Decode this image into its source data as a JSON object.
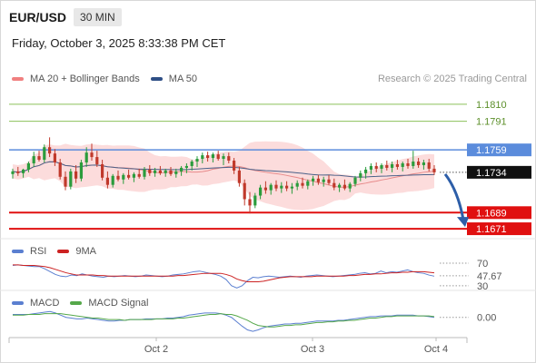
{
  "header": {
    "symbol": "EUR/USD",
    "timeframe": "30 MIN",
    "datetime": "Friday, October 3, 2025 8:33:38 PM CET"
  },
  "legend": {
    "items": [
      {
        "label": "MA 20 + Bollinger Bands",
        "color": "#f08080"
      },
      {
        "label": "MA 50",
        "color": "#2f4f86"
      }
    ],
    "research": "Research © 2025 Trading Central"
  },
  "colors": {
    "up_candle": "#2a9c3c",
    "down_candle": "#c0392b",
    "resistance": "#8cc05a",
    "pivot": "#5b8cdc",
    "support": "#e01010",
    "current": "#222222",
    "bollinger_fill": "#fbd3d3",
    "ma50": "#4a6189",
    "arrow": "#2d5ea8",
    "rsi": "#5b7fd0",
    "rsi_ma": "#cc2222",
    "macd": "#5b7fd0",
    "macd_signal": "#55a84a"
  },
  "chart_data": [
    {
      "type": "candlestick",
      "name": "price",
      "x_ticks": [
        "Oct 2",
        "Oct 3",
        "Oct 4"
      ],
      "levels": [
        {
          "value": 1.181,
          "label": "1.1810",
          "kind": "resistance"
        },
        {
          "value": 1.1791,
          "label": "1.1791",
          "kind": "resistance"
        },
        {
          "value": 1.1759,
          "label": "1.1759",
          "kind": "pivot"
        },
        {
          "value": 1.1734,
          "label": "1.1734",
          "kind": "current"
        },
        {
          "value": 1.1689,
          "label": "1.1689",
          "kind": "support"
        },
        {
          "value": 1.1671,
          "label": "1.1671",
          "kind": "support"
        }
      ],
      "ylim": [
        1.1665,
        1.1825
      ],
      "forecast_target": 1.1671,
      "ohlc": [
        [
          1.1732,
          1.1738,
          1.1727,
          1.1735
        ],
        [
          1.1735,
          1.174,
          1.173,
          1.1733
        ],
        [
          1.1733,
          1.1738,
          1.1728,
          1.1737
        ],
        [
          1.1737,
          1.1746,
          1.1734,
          1.1744
        ],
        [
          1.1744,
          1.1757,
          1.174,
          1.1752
        ],
        [
          1.1752,
          1.1758,
          1.1746,
          1.1748
        ],
        [
          1.1748,
          1.1765,
          1.1745,
          1.1762
        ],
        [
          1.1762,
          1.1773,
          1.1751,
          1.1755
        ],
        [
          1.1755,
          1.176,
          1.1741,
          1.1745
        ],
        [
          1.1745,
          1.1749,
          1.1726,
          1.1729
        ],
        [
          1.1729,
          1.1735,
          1.1714,
          1.1718
        ],
        [
          1.1718,
          1.1738,
          1.1715,
          1.1735
        ],
        [
          1.1735,
          1.1742,
          1.1722,
          1.1727
        ],
        [
          1.1727,
          1.1748,
          1.1724,
          1.1745
        ],
        [
          1.1745,
          1.1762,
          1.174,
          1.1756
        ],
        [
          1.1756,
          1.1766,
          1.1747,
          1.1751
        ],
        [
          1.1751,
          1.1758,
          1.174,
          1.1743
        ],
        [
          1.1743,
          1.1748,
          1.1725,
          1.1728
        ],
        [
          1.1728,
          1.1735,
          1.1716,
          1.172
        ],
        [
          1.172,
          1.1732,
          1.1717,
          1.173
        ],
        [
          1.173,
          1.1736,
          1.1724,
          1.1726
        ],
        [
          1.1726,
          1.1733,
          1.1721,
          1.1731
        ],
        [
          1.1731,
          1.1737,
          1.1726,
          1.1728
        ],
        [
          1.1728,
          1.1734,
          1.1723,
          1.1732
        ],
        [
          1.1732,
          1.1738,
          1.1727,
          1.1729
        ],
        [
          1.1729,
          1.174,
          1.1726,
          1.1737
        ],
        [
          1.1737,
          1.1742,
          1.173,
          1.1733
        ],
        [
          1.1733,
          1.1739,
          1.1729,
          1.1736
        ],
        [
          1.1736,
          1.1741,
          1.1731,
          1.1733
        ],
        [
          1.1733,
          1.1738,
          1.1729,
          1.1736
        ],
        [
          1.1736,
          1.174,
          1.173,
          1.1732
        ],
        [
          1.1732,
          1.1738,
          1.1728,
          1.1735
        ],
        [
          1.1735,
          1.1741,
          1.173,
          1.1739
        ],
        [
          1.1739,
          1.1744,
          1.1733,
          1.1741
        ],
        [
          1.1741,
          1.1748,
          1.1736,
          1.1746
        ],
        [
          1.1746,
          1.1752,
          1.174,
          1.1749
        ],
        [
          1.1749,
          1.1756,
          1.1744,
          1.1753
        ],
        [
          1.1753,
          1.1757,
          1.1746,
          1.175
        ],
        [
          1.175,
          1.1756,
          1.1745,
          1.1754
        ],
        [
          1.1754,
          1.1758,
          1.1747,
          1.1749
        ],
        [
          1.1749,
          1.1755,
          1.1742,
          1.1752
        ],
        [
          1.1752,
          1.1756,
          1.1744,
          1.1747
        ],
        [
          1.1747,
          1.175,
          1.1732,
          1.1736
        ],
        [
          1.1736,
          1.174,
          1.1718,
          1.1722
        ],
        [
          1.1722,
          1.1726,
          1.1697,
          1.1704
        ],
        [
          1.1704,
          1.1712,
          1.1688,
          1.1697
        ],
        [
          1.1697,
          1.1711,
          1.1694,
          1.1708
        ],
        [
          1.1708,
          1.172,
          1.1704,
          1.1717
        ],
        [
          1.1717,
          1.1724,
          1.171,
          1.1714
        ],
        [
          1.1714,
          1.1722,
          1.1709,
          1.172
        ],
        [
          1.172,
          1.1725,
          1.1713,
          1.1716
        ],
        [
          1.1716,
          1.1723,
          1.1711,
          1.1719
        ],
        [
          1.1719,
          1.1724,
          1.1713,
          1.1716
        ],
        [
          1.1716,
          1.1722,
          1.171,
          1.1718
        ],
        [
          1.1718,
          1.1725,
          1.1714,
          1.1722
        ],
        [
          1.1722,
          1.1728,
          1.1716,
          1.1719
        ],
        [
          1.1719,
          1.1726,
          1.1715,
          1.1724
        ],
        [
          1.1724,
          1.173,
          1.1719,
          1.1727
        ],
        [
          1.1727,
          1.1731,
          1.172,
          1.1723
        ],
        [
          1.1723,
          1.1729,
          1.1718,
          1.1726
        ],
        [
          1.1726,
          1.1731,
          1.172,
          1.1722
        ],
        [
          1.1722,
          1.1727,
          1.1714,
          1.1717
        ],
        [
          1.1717,
          1.1722,
          1.1712,
          1.172
        ],
        [
          1.172,
          1.1726,
          1.1714,
          1.1716
        ],
        [
          1.1716,
          1.1723,
          1.1712,
          1.1721
        ],
        [
          1.1721,
          1.173,
          1.1718,
          1.1728
        ],
        [
          1.1728,
          1.1736,
          1.1724,
          1.1733
        ],
        [
          1.1733,
          1.174,
          1.1727,
          1.1737
        ],
        [
          1.1737,
          1.1744,
          1.1732,
          1.1741
        ],
        [
          1.1741,
          1.1745,
          1.1734,
          1.1738
        ],
        [
          1.1738,
          1.1744,
          1.1733,
          1.1742
        ],
        [
          1.1742,
          1.1747,
          1.1736,
          1.1739
        ],
        [
          1.1739,
          1.1746,
          1.1734,
          1.1743
        ],
        [
          1.1743,
          1.1748,
          1.1737,
          1.174
        ],
        [
          1.174,
          1.1746,
          1.1735,
          1.1744
        ],
        [
          1.1744,
          1.1749,
          1.1738,
          1.1741
        ],
        [
          1.1741,
          1.1758,
          1.1738,
          1.1746
        ],
        [
          1.1746,
          1.175,
          1.1739,
          1.1742
        ],
        [
          1.1742,
          1.1748,
          1.1737,
          1.1745
        ],
        [
          1.1745,
          1.1749,
          1.1735,
          1.1738
        ],
        [
          1.1738,
          1.1742,
          1.1731,
          1.1734
        ]
      ]
    },
    {
      "type": "line",
      "name": "RSI",
      "legend": [
        "RSI",
        "9MA"
      ],
      "ticks": [
        "70",
        "47.67",
        "30"
      ],
      "tick_values": [
        70,
        47.67,
        30
      ],
      "ylim": [
        25,
        78
      ],
      "series": [
        {
          "name": "RSI",
          "values": [
            66,
            67,
            66,
            65,
            64,
            64,
            60,
            55,
            50,
            47,
            46,
            49,
            48,
            51,
            49,
            47,
            46,
            45,
            47,
            46,
            47,
            48,
            47,
            46,
            47,
            49,
            48,
            47,
            46,
            47,
            49,
            50,
            51,
            53,
            55,
            56,
            54,
            52,
            50,
            47,
            41,
            30,
            26,
            30,
            39,
            45,
            44,
            46,
            47,
            46,
            45,
            46,
            47,
            46,
            45,
            47,
            48,
            49,
            48,
            47,
            46,
            47,
            48,
            49,
            50,
            52,
            53,
            51,
            52,
            56,
            53,
            55,
            54,
            56,
            58,
            55,
            53,
            52,
            49,
            47
          ]
        },
        {
          "name": "9MA",
          "values": [
            67,
            67,
            66,
            66,
            66,
            65,
            64,
            62,
            59,
            56,
            53,
            51,
            49,
            49,
            49,
            49,
            48,
            48,
            47,
            47,
            47,
            47,
            47,
            47,
            47,
            47,
            47,
            47,
            47,
            47,
            47,
            48,
            48,
            49,
            50,
            51,
            52,
            52,
            52,
            52,
            50,
            47,
            42,
            39,
            37,
            37,
            37,
            38,
            40,
            42,
            44,
            45,
            46,
            46,
            46,
            46,
            46,
            47,
            47,
            47,
            47,
            47,
            47,
            48,
            48,
            49,
            50,
            50,
            51,
            51,
            52,
            53,
            53,
            54,
            54,
            55,
            55,
            55,
            54,
            53
          ]
        }
      ]
    },
    {
      "type": "line",
      "name": "MACD",
      "legend": [
        "MACD",
        "MACD Signal"
      ],
      "ticks": [
        "0.00"
      ],
      "tick_values": [
        0
      ],
      "ylim": [
        -0.0025,
        0.0012
      ],
      "series": [
        {
          "name": "MACD",
          "values": [
            0.0004,
            0.0004,
            0.0004,
            0.0004,
            0.0005,
            0.0006,
            0.0007,
            0.0008,
            0.0006,
            0.0003,
            0.0,
            -0.0001,
            -0.0002,
            -0.0002,
            -0.0001,
            -0.0002,
            -0.0003,
            -0.0004,
            -0.0005,
            -0.0005,
            -0.0004,
            -0.0004,
            -0.0003,
            -0.0003,
            -0.0003,
            -0.0002,
            -0.0002,
            -0.0002,
            -0.0002,
            -0.0001,
            -0.0001,
            0.0,
            0.0001,
            0.0003,
            0.0004,
            0.0005,
            0.0006,
            0.0006,
            0.0006,
            0.0005,
            0.0003,
            0.0,
            -0.0006,
            -0.0012,
            -0.0017,
            -0.0019,
            -0.0017,
            -0.0014,
            -0.0012,
            -0.0011,
            -0.001,
            -0.0009,
            -0.0009,
            -0.0008,
            -0.0008,
            -0.0007,
            -0.0006,
            -0.0005,
            -0.0005,
            -0.0005,
            -0.0005,
            -0.0004,
            -0.0004,
            -0.0003,
            -0.0002,
            -0.0001,
            0.0,
            0.0001,
            0.0001,
            0.0002,
            0.0002,
            0.0002,
            0.0003,
            0.0003,
            0.0003,
            0.0003,
            0.0002,
            0.0002,
            0.0001,
            0.0
          ]
        },
        {
          "name": "MACD Signal",
          "values": [
            0.0003,
            0.0003,
            0.0003,
            0.0004,
            0.0004,
            0.0004,
            0.0005,
            0.0005,
            0.0005,
            0.0005,
            0.0004,
            0.0003,
            0.0002,
            0.0001,
            0.0,
            -0.0001,
            -0.0001,
            -0.0002,
            -0.0003,
            -0.0003,
            -0.0003,
            -0.0004,
            -0.0003,
            -0.0003,
            -0.0003,
            -0.0003,
            -0.0003,
            -0.0002,
            -0.0002,
            -0.0002,
            -0.0002,
            -0.0001,
            -0.0001,
            0.0,
            0.0001,
            0.0002,
            0.0003,
            0.0004,
            0.0004,
            0.0005,
            0.0004,
            0.0004,
            0.0002,
            -0.0001,
            -0.0004,
            -0.0008,
            -0.0011,
            -0.0012,
            -0.0013,
            -0.0013,
            -0.0012,
            -0.0011,
            -0.0011,
            -0.001,
            -0.001,
            -0.0009,
            -0.0008,
            -0.0007,
            -0.0007,
            -0.0006,
            -0.0006,
            -0.0005,
            -0.0005,
            -0.0004,
            -0.0004,
            -0.0003,
            -0.0002,
            -0.0001,
            -0.0001,
            0.0,
            0.0001,
            0.0001,
            0.0002,
            0.0002,
            0.0002,
            0.0002,
            0.0002,
            0.0002,
            0.0002,
            0.0001
          ]
        }
      ]
    }
  ]
}
